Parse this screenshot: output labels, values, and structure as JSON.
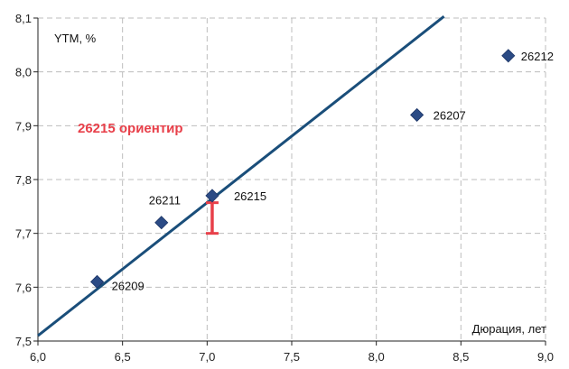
{
  "chart_data": {
    "type": "scatter",
    "title": "",
    "xlabel": "Дюрация, лет",
    "ylabel": "YTM, %",
    "xlim": [
      6.0,
      9.0
    ],
    "ylim": [
      7.5,
      8.1
    ],
    "x_ticks": [
      "6,0",
      "6,5",
      "7,0",
      "7,5",
      "8,0",
      "8,5",
      "9,0"
    ],
    "x_tick_values": [
      6.0,
      6.5,
      7.0,
      7.5,
      8.0,
      8.5,
      9.0
    ],
    "y_ticks": [
      "7,5",
      "7,6",
      "7,7",
      "7,8",
      "7,9",
      "8,0",
      "8,1"
    ],
    "y_tick_values": [
      7.5,
      7.6,
      7.7,
      7.8,
      7.9,
      8.0,
      8.1
    ],
    "grid": true,
    "points": [
      {
        "label": "26209",
        "x": 6.35,
        "y": 7.61
      },
      {
        "label": "26211",
        "x": 6.73,
        "y": 7.72
      },
      {
        "label": "26215",
        "x": 7.03,
        "y": 7.77
      },
      {
        "label": "26207",
        "x": 8.24,
        "y": 7.92
      },
      {
        "label": "26212",
        "x": 8.78,
        "y": 8.03
      }
    ],
    "trendline": {
      "x": [
        6.0,
        8.4
      ],
      "y": [
        7.51,
        8.103
      ]
    },
    "range_marker": {
      "x": 7.03,
      "y_low": 7.7,
      "y_high": 7.757
    },
    "annotation": "26215 ориентир",
    "colors": {
      "points": "#2b4b85",
      "trendline": "#1a4e7a",
      "marker": "#e8404a",
      "annotation": "#e8404a"
    }
  }
}
